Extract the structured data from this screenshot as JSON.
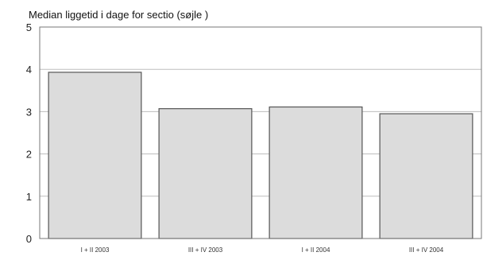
{
  "chart_data": {
    "type": "bar",
    "title": "Median liggetid i dage for sectio (søjle )",
    "xlabel": "",
    "ylabel": "",
    "categories": [
      "I + II 2003",
      "III + IV 2003",
      "I + II 2004",
      "III + IV 2004"
    ],
    "values": [
      3.93,
      3.07,
      3.11,
      2.95
    ],
    "ylim": [
      0,
      5
    ],
    "yticks": [
      "0",
      "1",
      "2",
      "3",
      "4",
      "5"
    ],
    "grid": true,
    "legend": "none",
    "colors": {
      "bar_fill": "#dcdcdc",
      "bar_stroke": "#555555",
      "gridline": "#bdbdbd",
      "axis": "#777777"
    }
  }
}
